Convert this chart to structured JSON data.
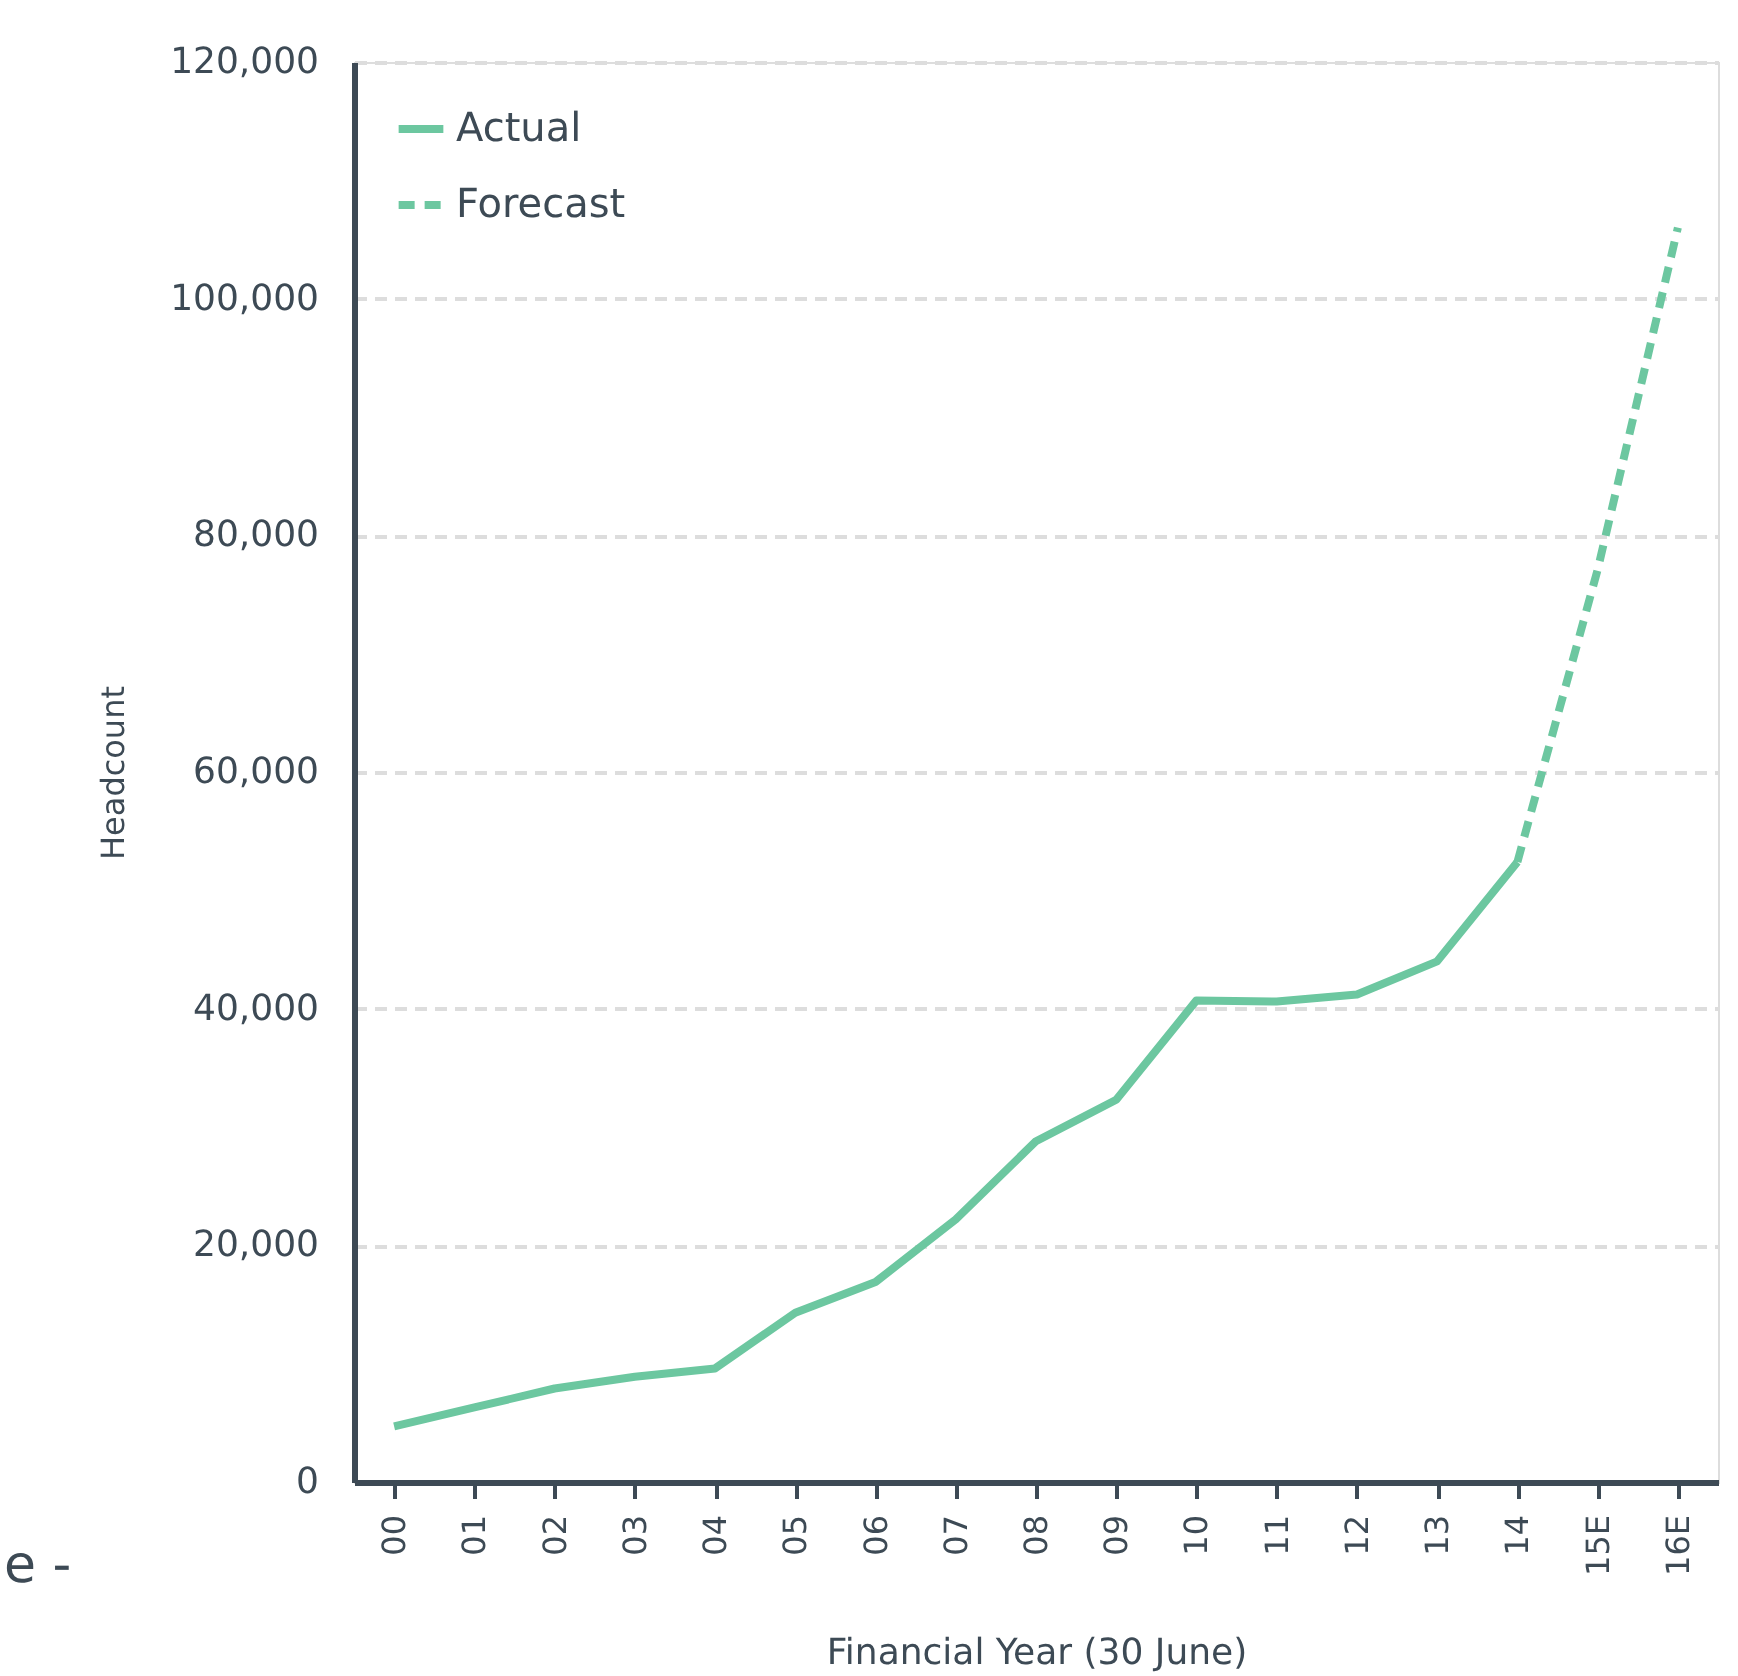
{
  "chart_data": {
    "type": "line",
    "xlabel": "Financial Year (30 June)",
    "ylabel": "Headcount",
    "categories": [
      "00",
      "01",
      "02",
      "03",
      "04",
      "05",
      "06",
      "07",
      "08",
      "09",
      "10",
      "11",
      "12",
      "13",
      "14",
      "15E",
      "16E"
    ],
    "series": [
      {
        "name": "Actual",
        "color": "#6cc7a0",
        "line_style": "solid",
        "values": [
          4700,
          6300,
          7900,
          8900,
          9600,
          14300,
          16900,
          22200,
          28800,
          32300,
          40700,
          40600,
          41200,
          44000,
          52400,
          null,
          null
        ]
      },
      {
        "name": "Forecast",
        "color": "#6cc7a0",
        "line_style": "dashed",
        "values": [
          null,
          null,
          null,
          null,
          null,
          null,
          null,
          null,
          null,
          null,
          null,
          null,
          null,
          null,
          52400,
          77100,
          106000
        ]
      }
    ],
    "ylim": [
      0,
      120000
    ],
    "yticks": [
      0,
      {
        "value": 20000,
        "label": "20,000"
      },
      {
        "value": 40000,
        "label": "40,000"
      },
      {
        "value": 60000,
        "label": "60,000"
      },
      {
        "value": 80000,
        "label": "80,000"
      },
      {
        "value": 100000,
        "label": "100,000"
      },
      {
        "value": 120000,
        "label": "120,000"
      }
    ],
    "grid": "y",
    "legend": "top left",
    "marker": "none",
    "annotations": [
      "e -"
    ]
  }
}
